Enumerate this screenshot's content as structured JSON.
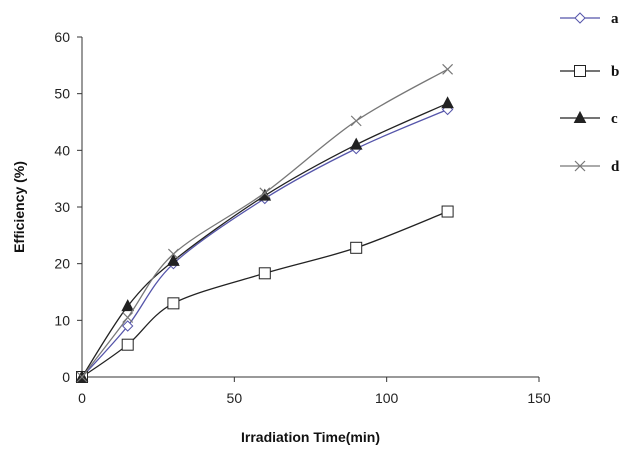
{
  "chart_data": {
    "type": "line",
    "title": "",
    "xlabel": "Irradiation Time(min)",
    "ylabel": "Efficiency (%)",
    "xlim": [
      0,
      150
    ],
    "ylim": [
      0,
      60
    ],
    "xticks": [
      0,
      50,
      100,
      150
    ],
    "yticks": [
      0,
      10,
      20,
      30,
      40,
      50,
      60
    ],
    "grid": false,
    "legend_position": "right",
    "series": [
      {
        "name": "a",
        "marker": "diamond-open",
        "color": "#5555aa",
        "x": [
          0,
          15,
          30,
          60,
          90,
          120
        ],
        "y": [
          0,
          9,
          20,
          31.5,
          40.3,
          47.2
        ]
      },
      {
        "name": "b",
        "marker": "square-open",
        "color": "#222222",
        "x": [
          0,
          15,
          30,
          60,
          90,
          120
        ],
        "y": [
          0,
          5.7,
          13,
          18.3,
          22.8,
          29.2
        ]
      },
      {
        "name": "c",
        "marker": "triangle-filled",
        "color": "#222222",
        "x": [
          0,
          15,
          30,
          60,
          90,
          120
        ],
        "y": [
          0,
          12.5,
          20.5,
          32,
          41,
          48.3
        ]
      },
      {
        "name": "d",
        "marker": "x",
        "color": "#777777",
        "x": [
          0,
          15,
          30,
          60,
          90,
          120
        ],
        "y": [
          0,
          10.5,
          21.7,
          32.5,
          45.2,
          54.3
        ]
      }
    ]
  }
}
